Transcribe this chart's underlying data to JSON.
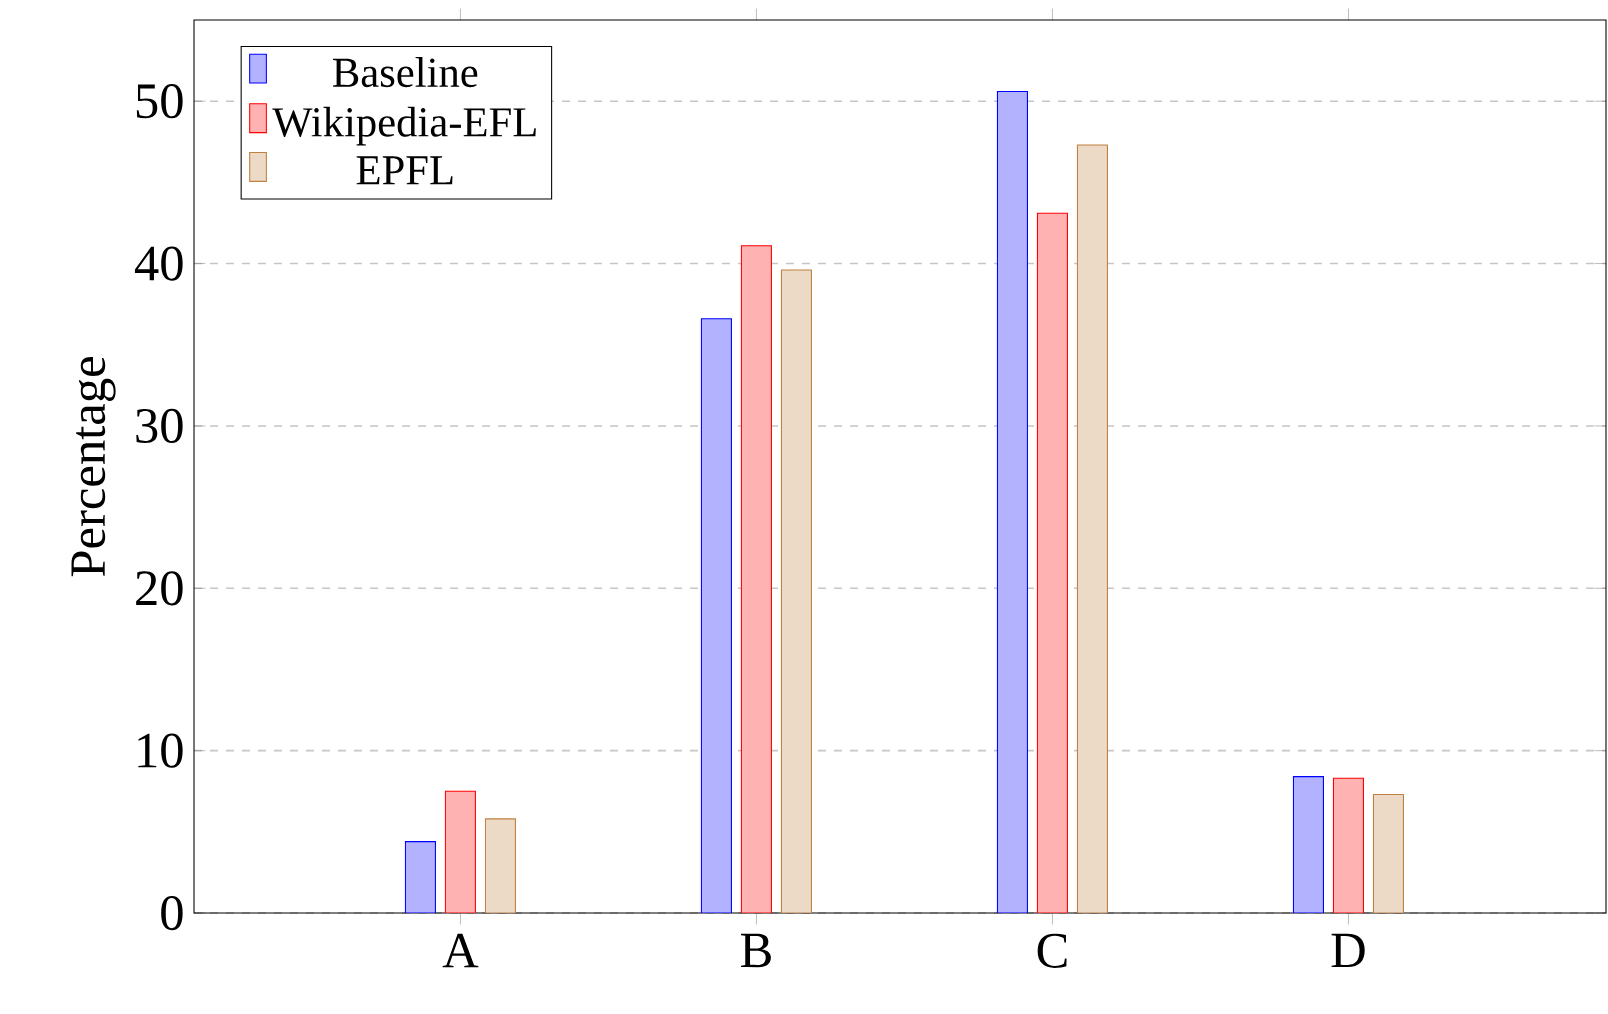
{
  "chart_data": {
    "type": "bar",
    "ylabel": "Percentage",
    "categories": [
      "A",
      "B",
      "C",
      "D"
    ],
    "series": [
      {
        "name": "Baseline",
        "color": "#b2b2ff",
        "values": [
          4.4,
          36.6,
          50.6,
          8.4
        ]
      },
      {
        "name": "Wikipedia-EFL",
        "color": "#ffb2b2",
        "values": [
          7.5,
          41.1,
          43.1,
          8.3
        ]
      },
      {
        "name": "EPFL",
        "color": "#ecd9c6",
        "values": [
          5.8,
          39.6,
          47.3,
          7.3
        ]
      }
    ],
    "ylim": [
      0,
      55
    ],
    "yticks": [
      0,
      10,
      20,
      30,
      40,
      50
    ],
    "grid": "y",
    "legend": "top left"
  }
}
